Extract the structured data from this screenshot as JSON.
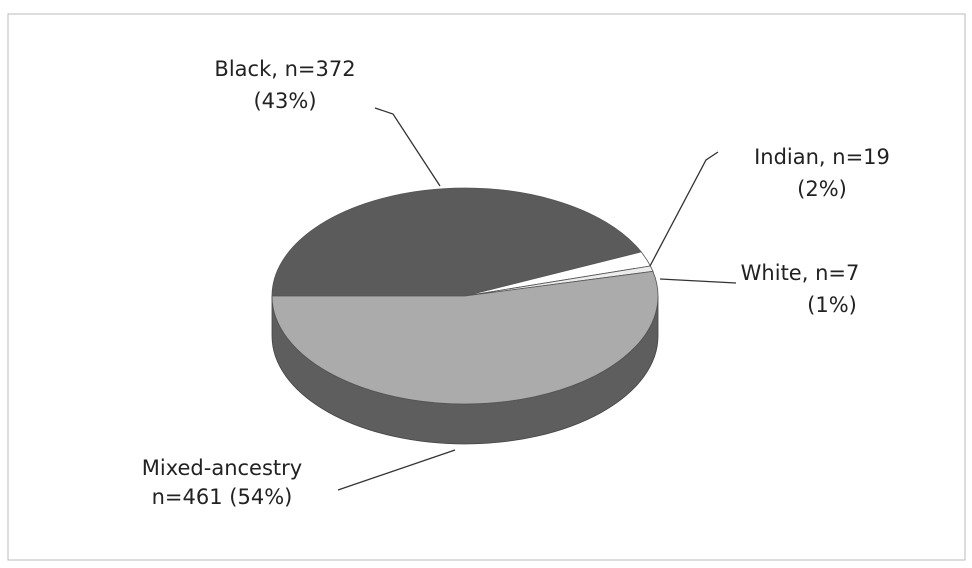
{
  "chart_data": {
    "type": "pie3d",
    "values": [
      372,
      19,
      7,
      461
    ],
    "value_labels": [
      [
        "Black, n=372",
        "(43%)"
      ],
      [
        "Indian, n=19",
        "(2%)"
      ],
      [
        "White, n=7",
        "(1%)"
      ],
      [
        "Mixed-ancestry",
        "n=461 (54%)"
      ]
    ],
    "colors": [
      "#5b5b5b",
      "#ffffff",
      "#ececec",
      "#ababab"
    ],
    "side_color": "#5e5e5e"
  }
}
